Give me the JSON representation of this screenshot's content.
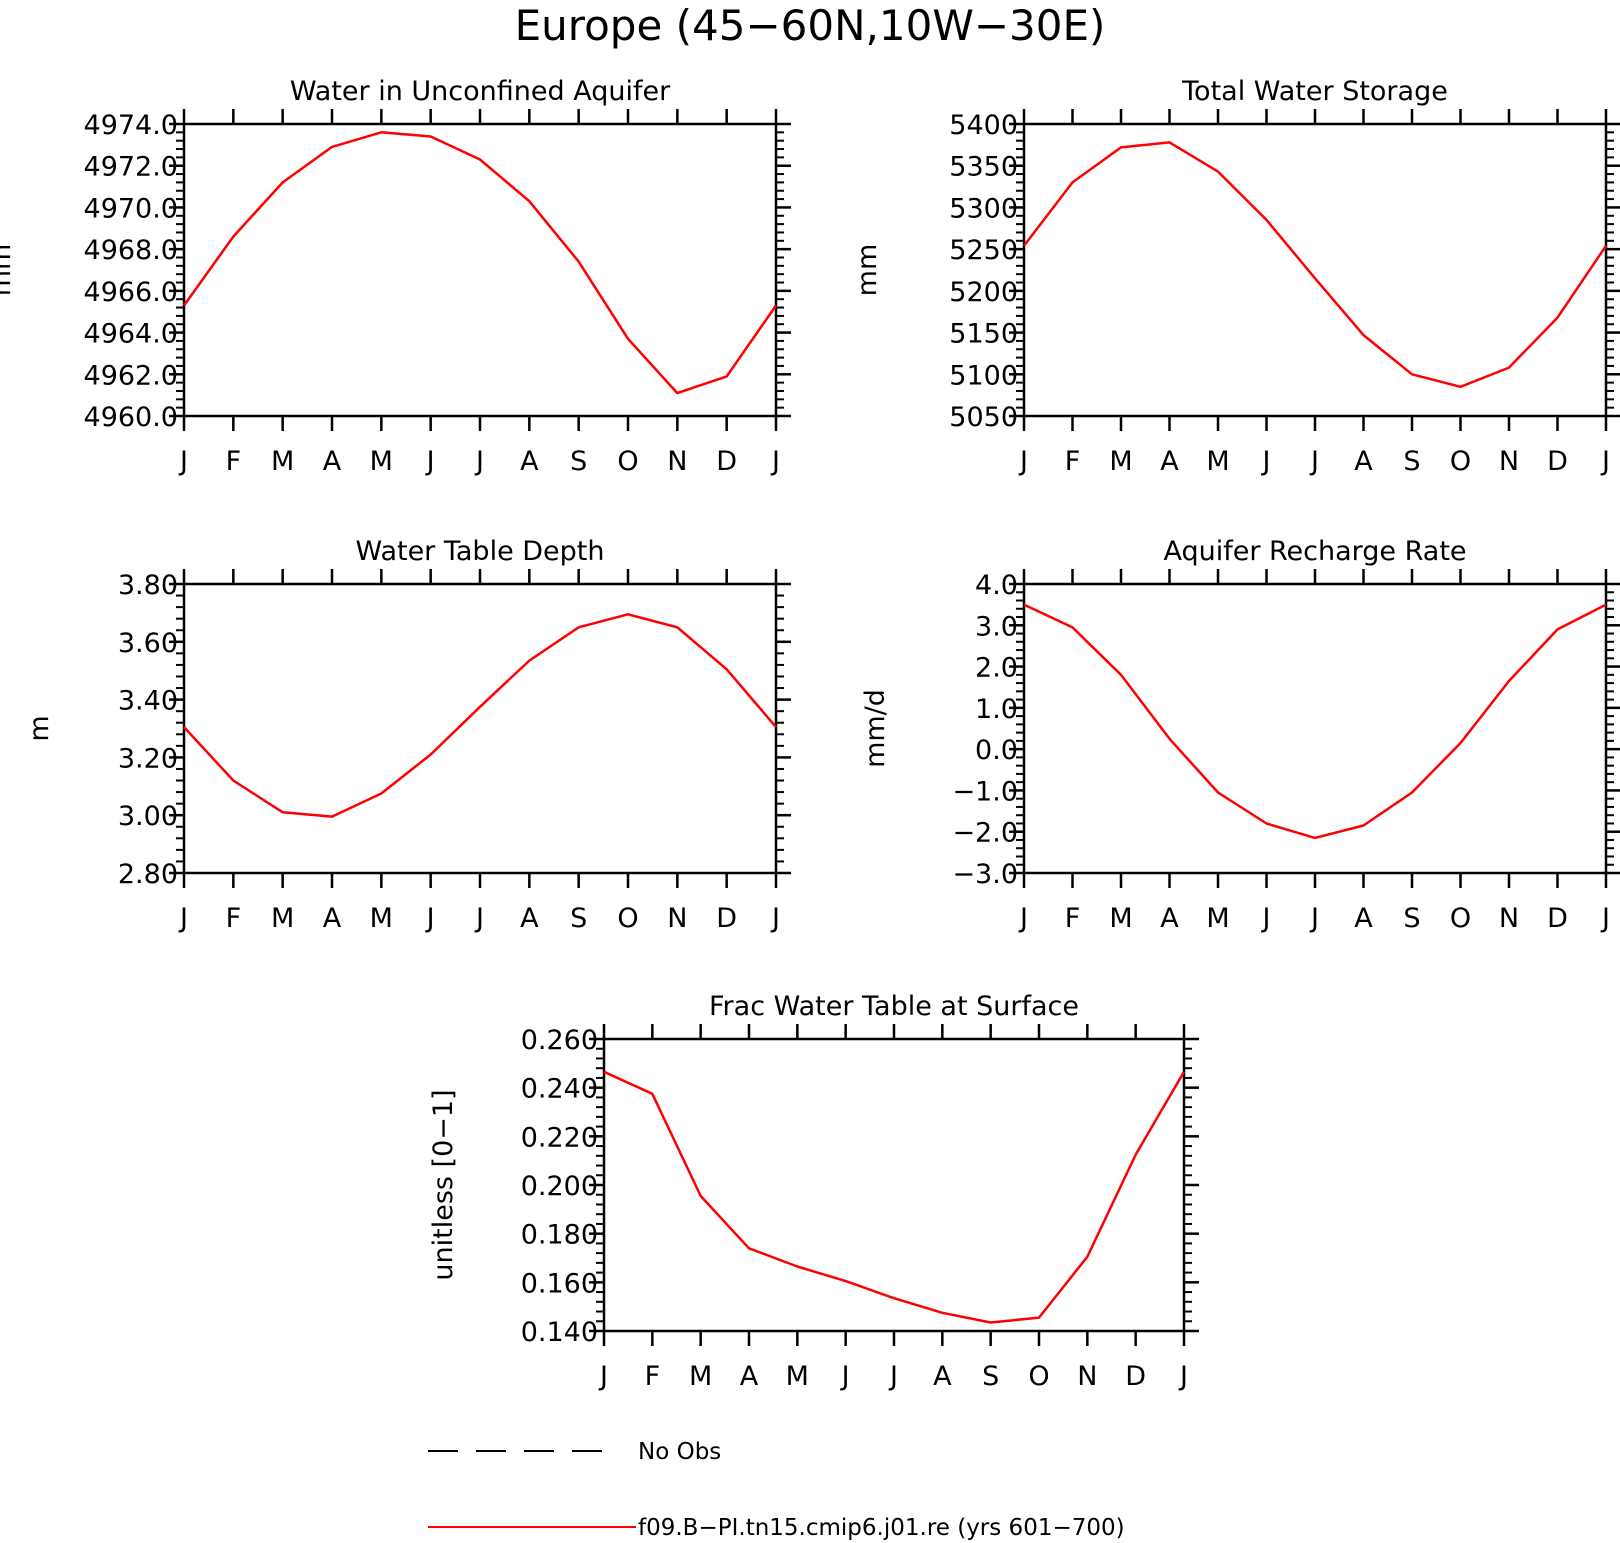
{
  "figure": {
    "title": "Europe (45−60N,10W−30E)"
  },
  "legend": {
    "items": [
      {
        "label": "No Obs",
        "style": "dashed",
        "color": "#000000"
      },
      {
        "label": "f09.B−PI.tn15.cmip6.j01.re (yrs 601−700)",
        "style": "solid",
        "color": "#ff0000"
      }
    ]
  },
  "chart_data": [
    {
      "type": "line",
      "title": "Water in Unconfined Aquifer",
      "ylabel": "mm",
      "xlabel": "",
      "x": [
        "J",
        "F",
        "M",
        "A",
        "M",
        "J",
        "J",
        "A",
        "S",
        "O",
        "N",
        "D",
        "J"
      ],
      "yticks": [
        "4960.0",
        "4962.0",
        "4964.0",
        "4966.0",
        "4968.0",
        "4970.0",
        "4972.0",
        "4974.0"
      ],
      "ylim": [
        4960,
        4974
      ],
      "minor_per_major": 4,
      "series": [
        {
          "color": "#ff0000",
          "values": [
            4965.3,
            4968.6,
            4971.2,
            4972.9,
            4973.6,
            4973.4,
            4972.3,
            4970.3,
            4967.4,
            4963.7,
            4961.1,
            4961.9,
            4965.3
          ]
        }
      ]
    },
    {
      "type": "line",
      "title": "Total Water Storage",
      "ylabel": "mm",
      "xlabel": "",
      "x": [
        "J",
        "F",
        "M",
        "A",
        "M",
        "J",
        "J",
        "A",
        "S",
        "O",
        "N",
        "D",
        "J"
      ],
      "yticks": [
        "5050",
        "5100",
        "5150",
        "5200",
        "5250",
        "5300",
        "5350",
        "5400"
      ],
      "ylim": [
        5050,
        5400
      ],
      "minor_per_major": 4,
      "series": [
        {
          "color": "#ff0000",
          "values": [
            5254,
            5330,
            5372,
            5378,
            5343,
            5285,
            5215,
            5147,
            5100,
            5085,
            5108,
            5168,
            5254
          ]
        }
      ]
    },
    {
      "type": "line",
      "title": "Water Table Depth",
      "ylabel": "m",
      "xlabel": "",
      "x": [
        "J",
        "F",
        "M",
        "A",
        "M",
        "J",
        "J",
        "A",
        "S",
        "O",
        "N",
        "D",
        "J"
      ],
      "yticks": [
        "2.80",
        "3.00",
        "3.20",
        "3.40",
        "3.60",
        "3.80"
      ],
      "ylim": [
        2.8,
        3.8
      ],
      "minor_per_major": 4,
      "series": [
        {
          "color": "#ff0000",
          "values": [
            3.305,
            3.12,
            3.01,
            2.995,
            3.075,
            3.21,
            3.375,
            3.535,
            3.65,
            3.695,
            3.65,
            3.505,
            3.305
          ]
        }
      ]
    },
    {
      "type": "line",
      "title": "Aquifer Recharge Rate",
      "ylabel": "mm/d",
      "xlabel": "",
      "x": [
        "J",
        "F",
        "M",
        "A",
        "M",
        "J",
        "J",
        "A",
        "S",
        "O",
        "N",
        "D",
        "J"
      ],
      "yticks": [
        "−3.0",
        "−2.0",
        "−1.0",
        "0.0",
        "1.0",
        "2.0",
        "3.0",
        "4.0"
      ],
      "ylim": [
        -3,
        4
      ],
      "minor_per_major": 4,
      "series": [
        {
          "color": "#ff0000",
          "values": [
            3.5,
            2.95,
            1.8,
            0.25,
            -1.05,
            -1.8,
            -2.15,
            -1.85,
            -1.05,
            0.15,
            1.65,
            2.9,
            3.5
          ]
        }
      ]
    },
    {
      "type": "line",
      "title": "Frac Water Table at Surface",
      "ylabel": "unitless [0−1]",
      "xlabel": "",
      "x": [
        "J",
        "F",
        "M",
        "A",
        "M",
        "J",
        "J",
        "A",
        "S",
        "O",
        "N",
        "D",
        "J"
      ],
      "yticks": [
        "0.140",
        "0.160",
        "0.180",
        "0.200",
        "0.220",
        "0.240",
        "0.260"
      ],
      "ylim": [
        0.14,
        0.26
      ],
      "minor_per_major": 4,
      "series": [
        {
          "color": "#ff0000",
          "values": [
            0.2465,
            0.2375,
            0.1955,
            0.174,
            0.1665,
            0.1605,
            0.1535,
            0.1475,
            0.1435,
            0.1455,
            0.1705,
            0.2125,
            0.2465
          ]
        }
      ]
    }
  ]
}
